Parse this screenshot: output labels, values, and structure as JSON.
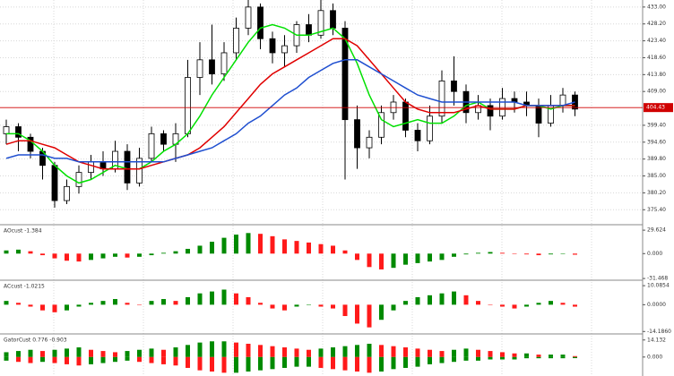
{
  "chart_data": [
    {
      "type": "candlestick",
      "open": [
        397,
        399,
        396,
        392,
        388,
        378,
        382,
        386,
        389,
        387,
        392,
        383,
        390,
        397,
        394,
        397,
        413,
        418,
        414,
        420,
        427,
        433,
        424,
        420,
        422,
        428,
        425,
        432,
        427,
        401,
        393,
        396,
        403,
        406,
        398,
        395,
        402,
        412,
        409,
        403,
        405,
        402,
        407,
        406,
        405,
        400,
        405,
        408
      ],
      "high": [
        401,
        400,
        397,
        393,
        389,
        384,
        388,
        391,
        392,
        395,
        394,
        393,
        399,
        398,
        400,
        418,
        423,
        428,
        423,
        430,
        435,
        434,
        426,
        425,
        429,
        431,
        435,
        434,
        429,
        405,
        398,
        405,
        408,
        407,
        400,
        405,
        415,
        419,
        411,
        408,
        407,
        410,
        409,
        409,
        407,
        408,
        410,
        409
      ],
      "low": [
        394,
        392,
        390,
        384,
        376,
        377,
        380,
        384,
        385,
        386,
        381,
        382,
        389,
        392,
        389,
        396,
        408,
        411,
        412,
        418,
        425,
        421,
        417,
        416,
        420,
        423,
        424,
        425,
        384,
        387,
        390,
        394,
        401,
        396,
        392,
        394,
        400,
        405,
        400,
        401,
        398,
        401,
        403,
        402,
        396,
        399,
        403,
        402
      ],
      "close": [
        399,
        396,
        392,
        388,
        378,
        382,
        386,
        389,
        387,
        392,
        383,
        390,
        397,
        394,
        397,
        413,
        418,
        414,
        420,
        427,
        433,
        424,
        420,
        422,
        428,
        425,
        432,
        427,
        401,
        393,
        396,
        403,
        406,
        398,
        395,
        402,
        412,
        409,
        403,
        405,
        402,
        407,
        406,
        405,
        400,
        405,
        408,
        404
      ],
      "series": [
        {
          "color": "#00e000",
          "values": [
            397,
            397,
            395,
            392,
            388,
            385,
            383,
            384,
            386,
            388,
            387,
            387,
            389,
            392,
            394,
            397,
            402,
            408,
            413,
            418,
            423,
            427,
            428,
            427,
            425,
            425,
            426,
            427,
            424,
            417,
            408,
            401,
            399,
            400,
            401,
            400,
            400,
            402,
            405,
            406,
            404,
            404,
            404,
            405,
            405,
            404,
            405,
            405
          ]
        },
        {
          "color": "#e00000",
          "values": [
            394,
            395,
            395,
            394,
            393,
            391,
            389,
            388,
            387,
            387,
            387,
            387,
            388,
            389,
            390,
            391,
            393,
            396,
            399,
            403,
            407,
            411,
            414,
            416,
            418,
            420,
            422,
            424,
            424,
            422,
            418,
            414,
            410,
            406,
            404,
            403,
            403,
            403,
            404,
            405,
            404,
            404,
            404,
            405,
            405,
            405,
            405,
            405
          ]
        },
        {
          "color": "#1f4fd0",
          "values": [
            390,
            391,
            391,
            391,
            390,
            390,
            389,
            389,
            389,
            389,
            389,
            389,
            389,
            389,
            390,
            391,
            392,
            393,
            395,
            397,
            400,
            402,
            405,
            408,
            410,
            413,
            415,
            417,
            418,
            418,
            416,
            414,
            412,
            410,
            408,
            407,
            406,
            406,
            406,
            406,
            406,
            406,
            406,
            405,
            405,
            405,
            405,
            406
          ]
        }
      ],
      "price_line": 404.43,
      "price_line_color": "#d00000",
      "ylim": [
        371.4,
        435.0
      ],
      "yticks": [
        {
          "value": 433.0,
          "label": "433.00"
        },
        {
          "value": 428.2,
          "label": "428.20"
        },
        {
          "value": 423.4,
          "label": "423.40"
        },
        {
          "value": 418.6,
          "label": "418.60"
        },
        {
          "value": 413.8,
          "label": "413.80"
        },
        {
          "value": 409.0,
          "label": "409.00"
        },
        {
          "value": 399.4,
          "label": "399.40"
        },
        {
          "value": 394.6,
          "label": "394.60"
        },
        {
          "value": 389.8,
          "label": "389.80"
        },
        {
          "value": 385.0,
          "label": "385.00"
        },
        {
          "value": 380.2,
          "label": "380.20"
        },
        {
          "value": 375.4,
          "label": "375.40"
        }
      ],
      "grid": true
    },
    {
      "type": "bar",
      "title": "AOcust -1.384",
      "up_color": "#008a00",
      "down_color": "#ff1a1a",
      "series": [
        {
          "values": [
            4,
            5,
            3,
            -2,
            -6,
            -9,
            -10,
            -8,
            -6,
            -4,
            -5,
            -4,
            -2,
            1,
            3,
            6,
            10,
            15,
            20,
            24,
            26,
            25,
            22,
            18,
            16,
            14,
            12,
            10,
            4,
            -8,
            -17,
            -20,
            -18,
            -14,
            -12,
            -10,
            -8,
            -4,
            -1,
            1,
            2,
            1,
            0,
            -1,
            -2,
            -1,
            0,
            -1.384
          ]
        }
      ],
      "ylim": [
        -32.5,
        35.4
      ],
      "yticks": [
        29.624,
        {
          "value": 0,
          "label": "0.000"
        },
        -31.468
      ]
    },
    {
      "type": "bar",
      "title": "ACcust -1.0215",
      "up_color": "#008a00",
      "down_color": "#ff1a1a",
      "series": [
        {
          "values": [
            2,
            1,
            -1,
            -3,
            -4,
            -3,
            -1,
            1,
            2,
            3,
            1,
            0,
            2,
            3,
            2,
            4,
            6,
            7,
            8,
            6,
            4,
            1,
            -2,
            -3,
            -1,
            0,
            -1,
            -2,
            -6,
            -10,
            -12,
            -8,
            -3,
            2,
            4,
            5,
            6,
            7,
            5,
            2,
            0,
            -1,
            -2,
            -1,
            1,
            2,
            1,
            -1.0215
          ]
        }
      ],
      "ylim": [
        -15,
        12.5
      ],
      "yticks": [
        10.0854,
        {
          "value": 0,
          "label": "0.0000"
        },
        {
          "value": -14.186,
          "label": "-14.1860"
        }
      ]
    },
    {
      "type": "bar",
      "title": "GatorCust 0.776 -0.903",
      "up_color": "#008a00",
      "down_color": "#ff1a1a",
      "series": [
        {
          "values": [
            4,
            5,
            6,
            5,
            6,
            7,
            8,
            6,
            5,
            4,
            5,
            6,
            7,
            6,
            8,
            10,
            12,
            13,
            13,
            12,
            11,
            10,
            9,
            8,
            7,
            6,
            7,
            8,
            9,
            10,
            11,
            10,
            9,
            8,
            7,
            6,
            5,
            6,
            7,
            6,
            5,
            4,
            3,
            3,
            2,
            2,
            2,
            0.776
          ]
        },
        {
          "values": [
            -3,
            -4,
            -5,
            -4,
            -5,
            -6,
            -7,
            -6,
            -5,
            -4,
            -3,
            -4,
            -5,
            -6,
            -7,
            -9,
            -11,
            -12,
            -13,
            -13,
            -12,
            -11,
            -10,
            -9,
            -8,
            -8,
            -9,
            -10,
            -11,
            -12,
            -13,
            -12,
            -10,
            -9,
            -8,
            -6,
            -5,
            -4,
            -3,
            -3,
            -2,
            -2,
            -2,
            -1,
            -1,
            -1,
            -1,
            -0.903
          ]
        }
      ],
      "ylim": [
        -15.7,
        18.4
      ],
      "yticks": [
        14.132,
        {
          "value": 0,
          "label": "0.000"
        }
      ]
    }
  ]
}
